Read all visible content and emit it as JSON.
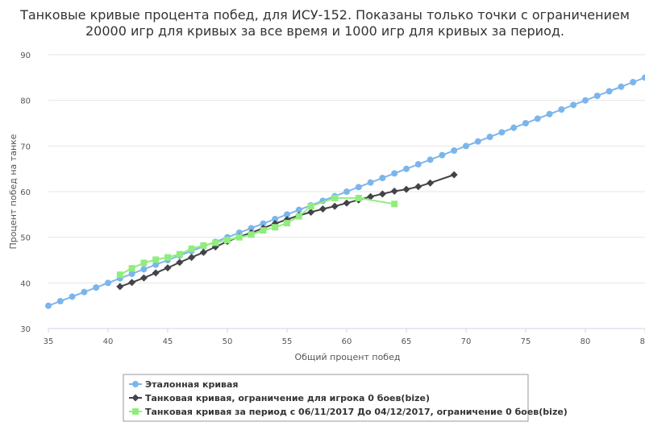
{
  "chart_data": {
    "type": "line",
    "title_lines": [
      "Танковые кривые процента побед, для ИСУ-152. Показаны только точки с ограничением",
      "20000 игр для кривых за все время и 1000 игр для кривых за период."
    ],
    "xlabel": "Общий процент побед",
    "ylabel": "Процент побед на танке",
    "xlim": [
      35,
      85
    ],
    "ylim": [
      30,
      90
    ],
    "x_ticks": [
      "35",
      "40",
      "45",
      "50",
      "55",
      "60",
      "65",
      "70",
      "75",
      "80",
      "8"
    ],
    "y_ticks": [
      "30",
      "40",
      "50",
      "60",
      "70",
      "80",
      "90"
    ],
    "grid": "horizontal",
    "legend_position": "bottom",
    "series": [
      {
        "name": "Эталонная кривая",
        "color": "#7cb5ec",
        "marker": "circle",
        "points": [
          [
            35,
            35
          ],
          [
            36,
            36
          ],
          [
            37,
            37
          ],
          [
            38,
            38
          ],
          [
            39,
            39
          ],
          [
            40,
            40
          ],
          [
            41,
            41
          ],
          [
            42,
            42
          ],
          [
            43,
            43
          ],
          [
            44,
            44
          ],
          [
            45,
            45
          ],
          [
            46,
            46
          ],
          [
            47,
            47
          ],
          [
            48,
            48
          ],
          [
            49,
            49
          ],
          [
            50,
            50
          ],
          [
            51,
            51
          ],
          [
            52,
            52
          ],
          [
            53,
            53
          ],
          [
            54,
            54
          ],
          [
            55,
            55
          ],
          [
            56,
            56
          ],
          [
            57,
            57
          ],
          [
            58,
            58
          ],
          [
            59,
            59
          ],
          [
            60,
            60
          ],
          [
            61,
            61
          ],
          [
            62,
            62
          ],
          [
            63,
            63
          ],
          [
            64,
            64
          ],
          [
            65,
            65
          ],
          [
            66,
            66
          ],
          [
            67,
            67
          ],
          [
            68,
            68
          ],
          [
            69,
            69
          ],
          [
            70,
            70
          ],
          [
            71,
            71
          ],
          [
            72,
            72
          ],
          [
            73,
            73
          ],
          [
            74,
            74
          ],
          [
            75,
            75
          ],
          [
            76,
            76
          ],
          [
            77,
            77
          ],
          [
            78,
            78
          ],
          [
            79,
            79
          ],
          [
            80,
            80
          ],
          [
            81,
            81
          ],
          [
            82,
            82
          ],
          [
            83,
            83
          ],
          [
            84,
            84
          ],
          [
            85,
            85
          ]
        ]
      },
      {
        "name": "Танковая кривая, ограничение для игрока 0 боев(bize)",
        "color": "#434348",
        "marker": "diamond",
        "points": [
          [
            41,
            39.2
          ],
          [
            42,
            40.1
          ],
          [
            43,
            41.1
          ],
          [
            44,
            42.2
          ],
          [
            45,
            43.3
          ],
          [
            46,
            44.5
          ],
          [
            47,
            45.6
          ],
          [
            48,
            46.7
          ],
          [
            49,
            47.9
          ],
          [
            50,
            49.1
          ],
          [
            51,
            50.1
          ],
          [
            52,
            51.0
          ],
          [
            53,
            52.0
          ],
          [
            54,
            53.0
          ],
          [
            55,
            53.9
          ],
          [
            56,
            54.8
          ],
          [
            57,
            55.5
          ],
          [
            58,
            56.2
          ],
          [
            59,
            56.8
          ],
          [
            60,
            57.5
          ],
          [
            61,
            58.2
          ],
          [
            62,
            58.9
          ],
          [
            63,
            59.5
          ],
          [
            64,
            60.1
          ],
          [
            65,
            60.5
          ],
          [
            66,
            61.1
          ],
          [
            67,
            61.9
          ],
          [
            69,
            63.7
          ]
        ]
      },
      {
        "name": "Танковая кривая за период с 06/11/2017 До 04/12/2017, ограничение 0 боев(bize)",
        "color": "#90ed7d",
        "marker": "square",
        "points": [
          [
            41,
            41.8
          ],
          [
            42,
            43.2
          ],
          [
            43,
            44.4
          ],
          [
            44,
            45.1
          ],
          [
            45,
            45.6
          ],
          [
            46,
            46.3
          ],
          [
            47,
            47.5
          ],
          [
            48,
            48.2
          ],
          [
            49,
            48.8
          ],
          [
            50,
            49.4
          ],
          [
            51,
            50.0
          ],
          [
            52,
            50.6
          ],
          [
            53,
            51.5
          ],
          [
            54,
            52.2
          ],
          [
            55,
            53.1
          ],
          [
            56,
            54.6
          ],
          [
            57,
            56.8
          ],
          [
            59,
            58.6
          ],
          [
            61,
            58.6
          ],
          [
            64,
            57.3
          ]
        ]
      }
    ]
  }
}
